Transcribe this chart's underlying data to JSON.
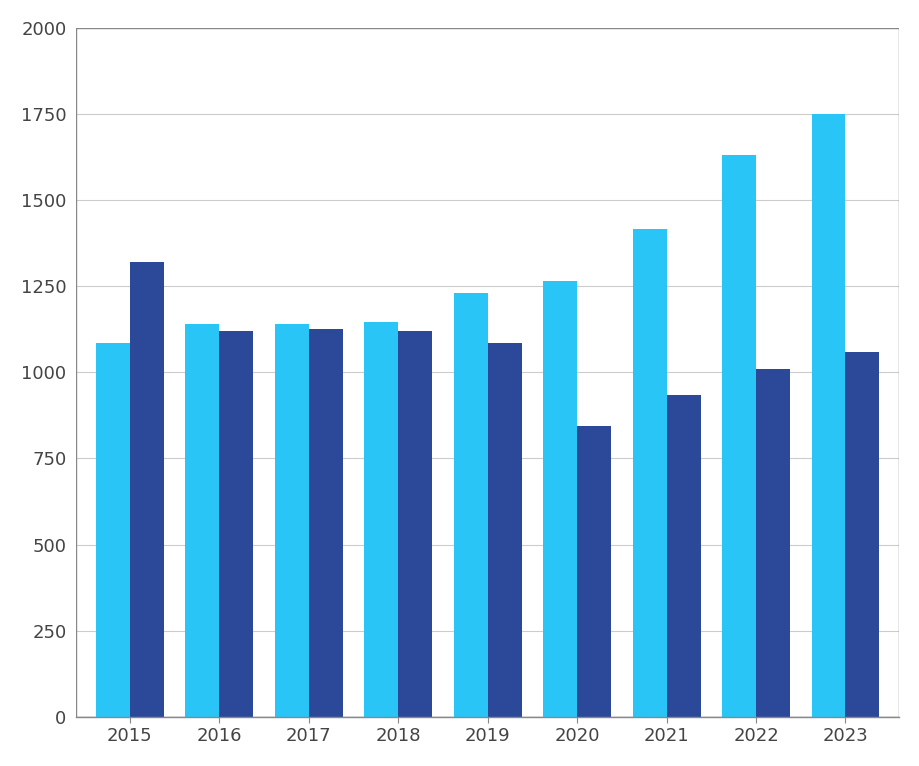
{
  "years": [
    "2015",
    "2016",
    "2017",
    "2018",
    "2019",
    "2020",
    "2021",
    "2022",
    "2023"
  ],
  "clean_energy": [
    1085,
    1140,
    1140,
    1145,
    1230,
    1265,
    1415,
    1630,
    1750
  ],
  "fossil_fuels": [
    1320,
    1120,
    1125,
    1120,
    1085,
    845,
    935,
    1010,
    1060
  ],
  "clean_color": "#29C5F6",
  "fossil_color": "#2B4899",
  "ylim": [
    0,
    2000
  ],
  "yticks": [
    0,
    250,
    500,
    750,
    1000,
    1250,
    1500,
    1750,
    2000
  ],
  "background_color": "#FFFFFF",
  "grid_color": "#CCCCCC",
  "bar_width": 0.38,
  "figsize": [
    9.2,
    7.66
  ],
  "dpi": 100
}
